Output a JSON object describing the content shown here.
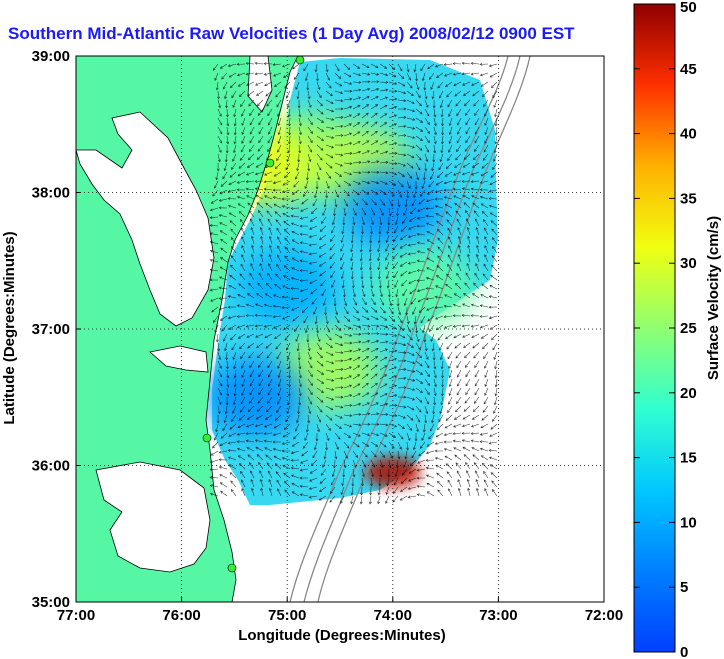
{
  "chart_data": {
    "type": "heatmap",
    "title": "Southern Mid-Atlantic Raw Velocities (1 Day Avg) 2008/02/12 0900 EST",
    "xlabel": "Longitude (Degrees:Minutes)",
    "ylabel": "Latitude (Degrees:Minutes)",
    "x_ticks": [
      "77:00",
      "76:00",
      "75:00",
      "74:00",
      "73:00",
      "72:00"
    ],
    "y_ticks": [
      "39:00",
      "38:00",
      "37:00",
      "36:00",
      "35:00"
    ],
    "xlim": [
      -77,
      -72
    ],
    "ylim": [
      35,
      39
    ],
    "grid": true,
    "colorbar": {
      "label": "Surface Velocity (cm/s)",
      "range": [
        0,
        50
      ],
      "ticks": [
        "0",
        "5",
        "10",
        "15",
        "20",
        "25",
        "30",
        "35",
        "40",
        "45",
        "50"
      ],
      "colormap": "jet"
    },
    "land_color": "#55f7a4",
    "velocity_regions": [
      {
        "lon": -74.8,
        "lat": 38.3,
        "speed": 25
      },
      {
        "lon": -74.3,
        "lat": 38.2,
        "speed": 28
      },
      {
        "lon": -74.0,
        "lat": 37.9,
        "speed": 7
      },
      {
        "lon": -75.0,
        "lat": 37.3,
        "speed": 10
      },
      {
        "lon": -74.6,
        "lat": 36.7,
        "speed": 27
      },
      {
        "lon": -75.3,
        "lat": 36.5,
        "speed": 7
      },
      {
        "lon": -73.7,
        "lat": 37.3,
        "speed": 22
      },
      {
        "lon": -74.0,
        "lat": 35.95,
        "speed": 48
      },
      {
        "lon": -75.2,
        "lat": 38.2,
        "speed": 31
      }
    ]
  }
}
